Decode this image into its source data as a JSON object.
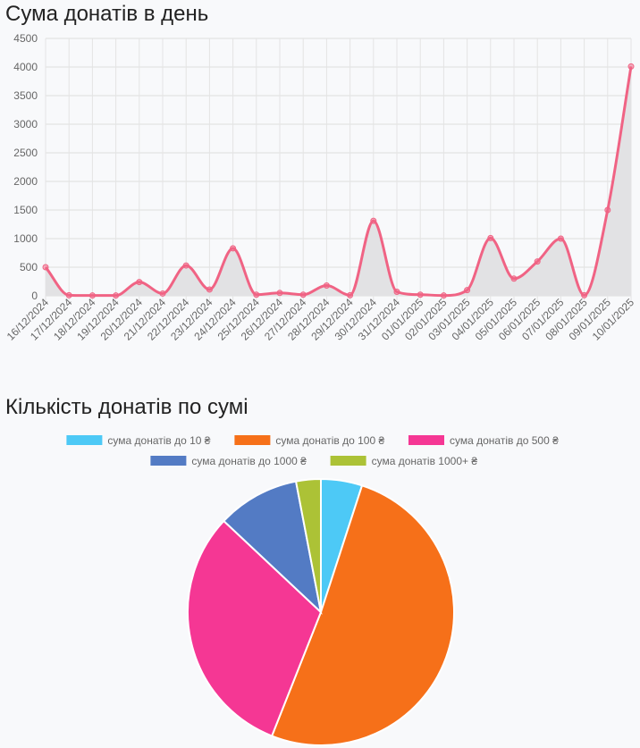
{
  "titles": {
    "daily": "Сума донатів в день",
    "distribution": "Кількість донатів по сумі"
  },
  "chart_data": [
    {
      "type": "area",
      "title": "Сума донатів в день",
      "x": [
        "16/12/2024",
        "17/12/2024",
        "18/12/2024",
        "19/12/2024",
        "20/12/2024",
        "21/12/2024",
        "22/12/2024",
        "23/12/2024",
        "24/12/2024",
        "25/12/2024",
        "26/12/2024",
        "27/12/2024",
        "28/12/2024",
        "29/12/2024",
        "30/12/2024",
        "31/12/2024",
        "01/01/2025",
        "02/01/2025",
        "03/01/2025",
        "04/01/2025",
        "05/01/2025",
        "06/01/2025",
        "07/01/2025",
        "08/01/2025",
        "09/01/2025",
        "10/01/2025"
      ],
      "y": [
        500,
        10,
        5,
        5,
        240,
        40,
        530,
        110,
        830,
        20,
        50,
        20,
        180,
        10,
        1310,
        70,
        20,
        5,
        100,
        1010,
        300,
        600,
        1000,
        10,
        1500,
        4010
      ],
      "yticks": [
        0,
        500,
        1000,
        1500,
        2000,
        2500,
        3000,
        3500,
        4000,
        4500
      ],
      "ylim": [
        0,
        4500
      ],
      "grid": true,
      "line_color": "#f06384",
      "fill_color": "#e2e2e4"
    },
    {
      "type": "pie",
      "title": "Кількість донатів по сумі",
      "labels": [
        "сума донатів до 10 ₴",
        "сума донатів до 100 ₴",
        "сума донатів до 500 ₴",
        "сума донатів до 1000 ₴",
        "сума донатів 1000+ ₴"
      ],
      "values": [
        5,
        51,
        31,
        10,
        3
      ],
      "colors": [
        "#4dc9f6",
        "#f67019",
        "#f53794",
        "#537bc4",
        "#acc236"
      ],
      "legend": "top"
    }
  ]
}
